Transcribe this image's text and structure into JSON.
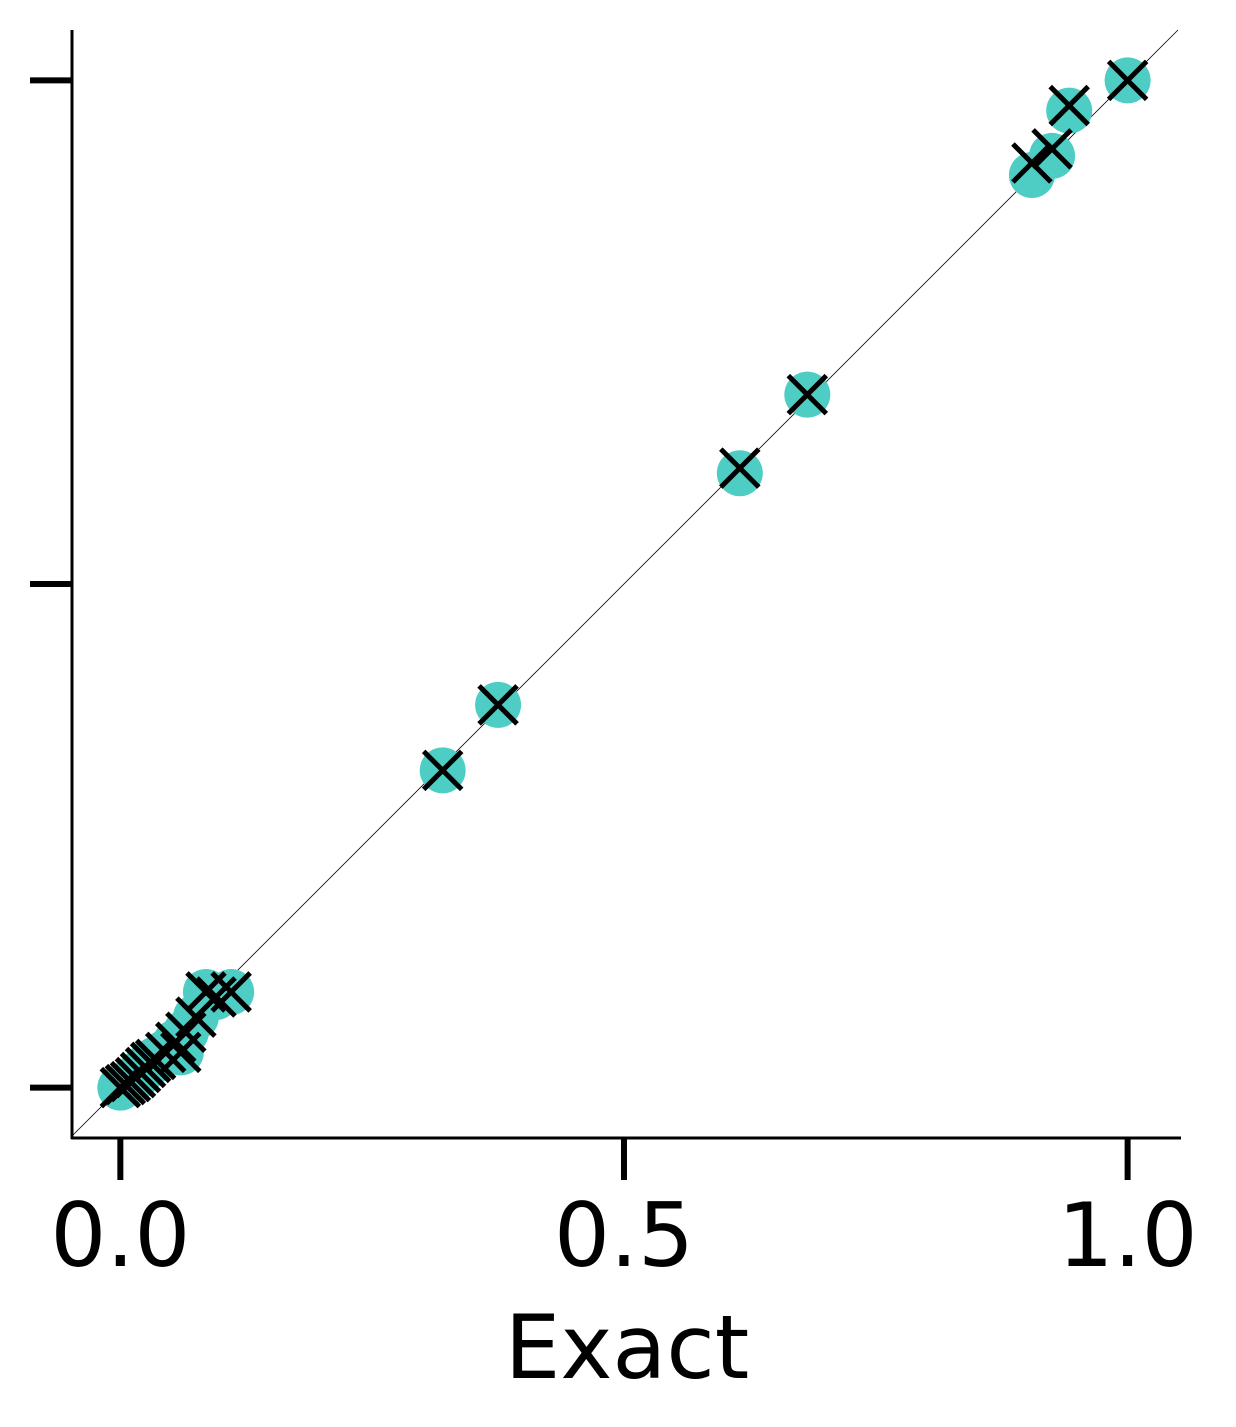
{
  "chart_data": {
    "type": "scatter",
    "title": "",
    "xlabel": "Exact",
    "ylabel": "",
    "xlim": [
      -0.048,
      1.053
    ],
    "ylim": [
      -0.05,
      1.05
    ],
    "x_ticks": [
      0.0,
      0.5,
      1.0
    ],
    "x_tick_labels": [
      "0.0",
      "0.5",
      "1.0"
    ],
    "y_ticks": [
      0.0,
      0.5,
      1.0
    ],
    "y_tick_labels": [
      "",
      "",
      ""
    ],
    "grid": false,
    "legend": null,
    "reference_line": {
      "type": "identity",
      "color": "#000000"
    },
    "series": [
      {
        "marker": "circle",
        "color": "#4ecdc4",
        "points": [
          [
            0.0,
            0.0
          ],
          [
            0.005,
            0.003
          ],
          [
            0.01,
            0.006
          ],
          [
            0.015,
            0.01
          ],
          [
            0.02,
            0.015
          ],
          [
            0.025,
            0.02
          ],
          [
            0.03,
            0.025
          ],
          [
            0.035,
            0.028
          ],
          [
            0.045,
            0.035
          ],
          [
            0.055,
            0.045
          ],
          [
            0.06,
            0.035
          ],
          [
            0.065,
            0.055
          ],
          [
            0.075,
            0.07
          ],
          [
            0.085,
            0.095
          ],
          [
            0.095,
            0.09
          ],
          [
            0.11,
            0.095
          ],
          [
            0.32,
            0.315
          ],
          [
            0.375,
            0.38
          ],
          [
            0.615,
            0.61
          ],
          [
            0.682,
            0.688
          ],
          [
            0.905,
            0.906
          ],
          [
            0.925,
            0.925
          ],
          [
            0.942,
            0.97
          ],
          [
            1.0,
            1.0
          ]
        ]
      },
      {
        "marker": "x",
        "color": "#000000",
        "points": [
          [
            0.0,
            0.0
          ],
          [
            0.005,
            0.003
          ],
          [
            0.01,
            0.006
          ],
          [
            0.015,
            0.01
          ],
          [
            0.02,
            0.015
          ],
          [
            0.025,
            0.02
          ],
          [
            0.03,
            0.025
          ],
          [
            0.035,
            0.028
          ],
          [
            0.045,
            0.035
          ],
          [
            0.055,
            0.045
          ],
          [
            0.06,
            0.035
          ],
          [
            0.065,
            0.055
          ],
          [
            0.075,
            0.07
          ],
          [
            0.085,
            0.095
          ],
          [
            0.095,
            0.09
          ],
          [
            0.11,
            0.095
          ],
          [
            0.32,
            0.315
          ],
          [
            0.375,
            0.38
          ],
          [
            0.615,
            0.615
          ],
          [
            0.682,
            0.688
          ],
          [
            0.905,
            0.918
          ],
          [
            0.925,
            0.932
          ],
          [
            0.942,
            0.975
          ],
          [
            1.0,
            1.0
          ]
        ]
      }
    ]
  }
}
